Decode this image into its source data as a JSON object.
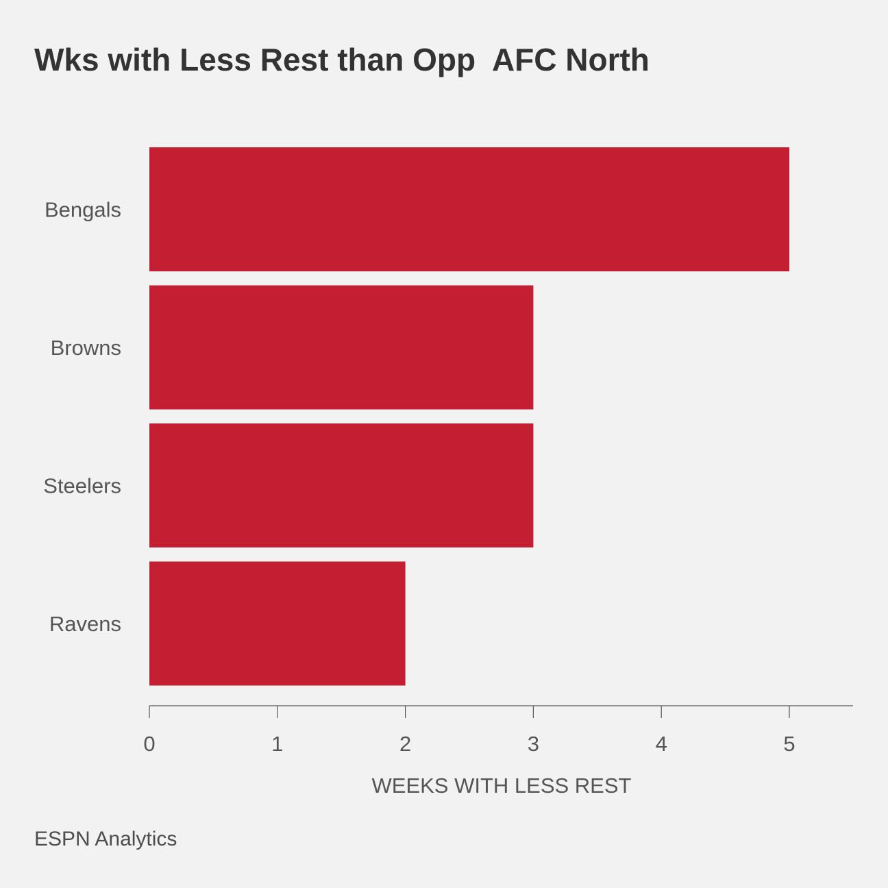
{
  "chart_data": {
    "type": "bar",
    "orientation": "horizontal",
    "title": "Wks with Less Rest than Opp  AFC North",
    "categories": [
      "Bengals",
      "Browns",
      "Steelers",
      "Ravens"
    ],
    "values": [
      5,
      3,
      3,
      2
    ],
    "xlabel": "WEEKS WITH LESS REST",
    "ylabel": "",
    "xlim": [
      0,
      5.5
    ],
    "xticks": [
      0,
      1,
      2,
      3,
      4,
      5
    ],
    "bar_color": "#c41e32",
    "axis_color": "#555555",
    "grid": false,
    "legend": "none"
  },
  "source": "ESPN Analytics"
}
